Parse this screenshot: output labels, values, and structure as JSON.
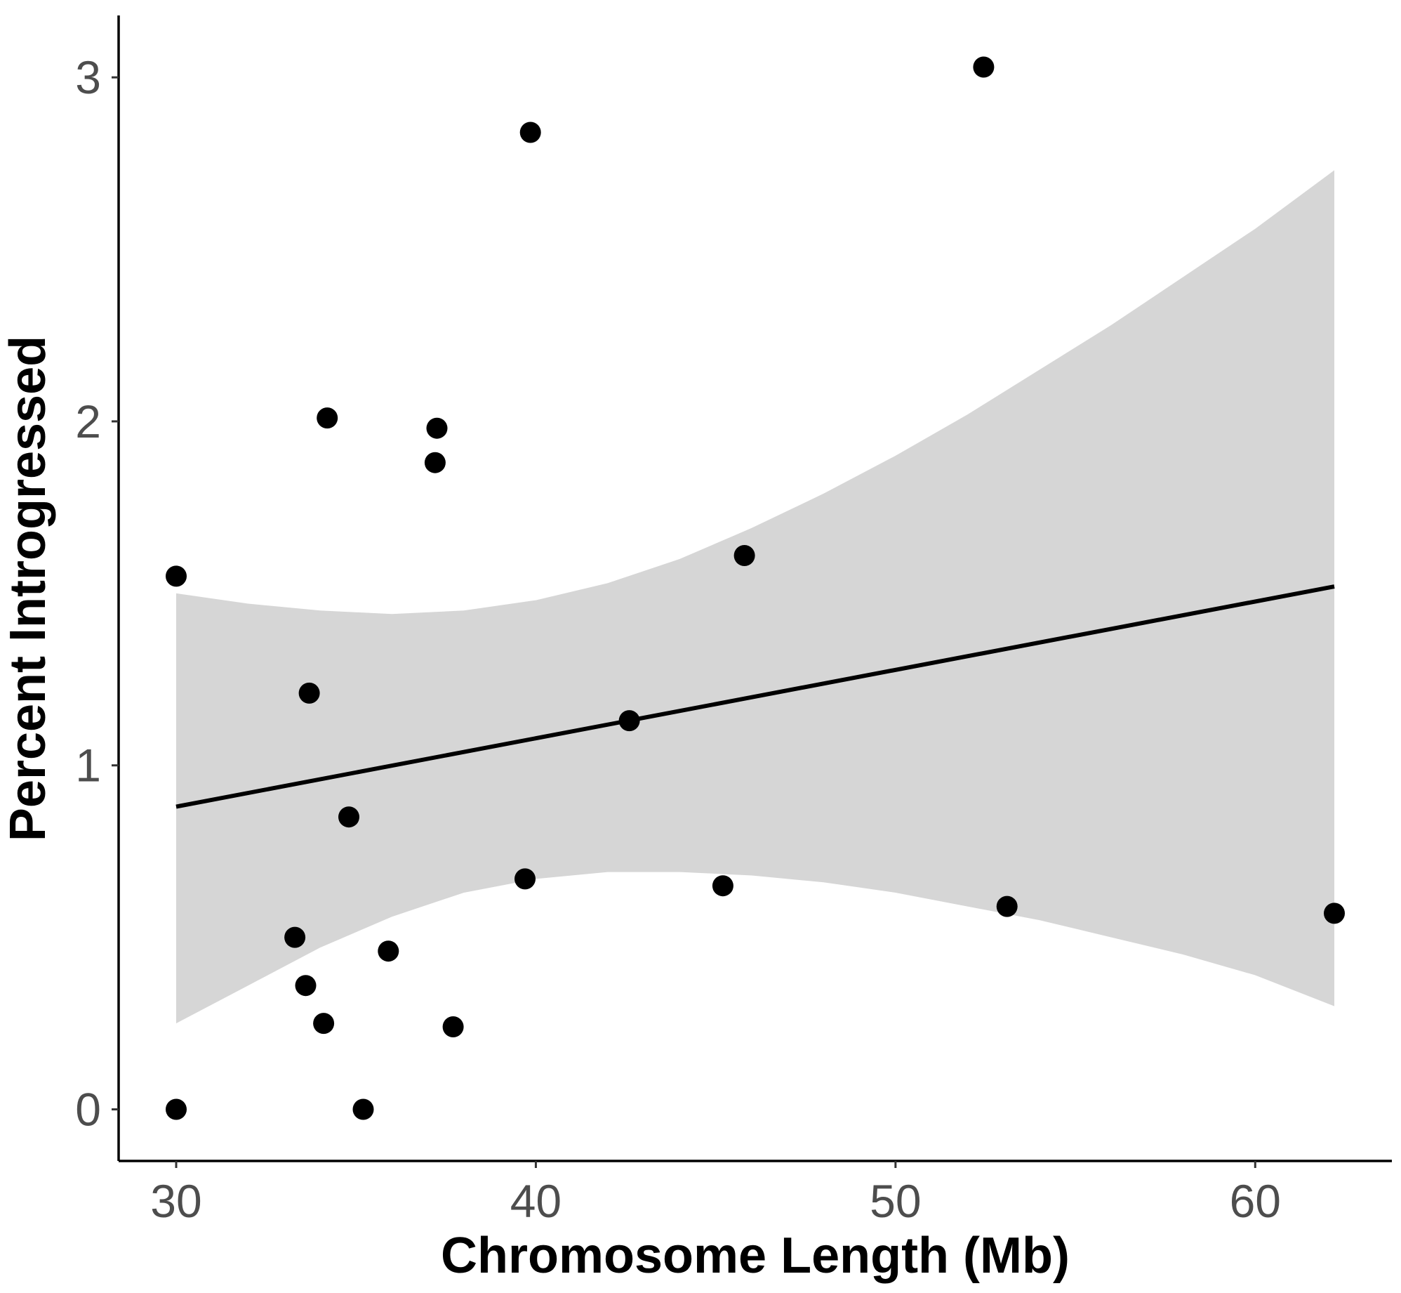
{
  "chart_data": {
    "type": "scatter",
    "xlabel": "Chromosome Length (Mb)",
    "ylabel": "Percent Introgressed",
    "xlim": [
      28.4,
      63.8
    ],
    "ylim": [
      -0.15,
      3.18
    ],
    "x_ticks": [
      30,
      40,
      50,
      60
    ],
    "y_ticks": [
      0,
      1,
      2,
      3
    ],
    "grid": false,
    "legend": "none",
    "points": [
      {
        "x": 30.0,
        "y": 1.55
      },
      {
        "x": 30.0,
        "y": 0.0
      },
      {
        "x": 33.3,
        "y": 0.5
      },
      {
        "x": 33.6,
        "y": 0.36
      },
      {
        "x": 33.7,
        "y": 1.21
      },
      {
        "x": 34.1,
        "y": 0.25
      },
      {
        "x": 34.2,
        "y": 2.01
      },
      {
        "x": 34.8,
        "y": 0.85
      },
      {
        "x": 35.2,
        "y": 0.0
      },
      {
        "x": 35.9,
        "y": 0.46
      },
      {
        "x": 37.2,
        "y": 1.88
      },
      {
        "x": 37.25,
        "y": 1.98
      },
      {
        "x": 37.7,
        "y": 0.24
      },
      {
        "x": 39.7,
        "y": 0.67
      },
      {
        "x": 39.85,
        "y": 2.84
      },
      {
        "x": 42.6,
        "y": 1.13
      },
      {
        "x": 45.2,
        "y": 0.65
      },
      {
        "x": 45.8,
        "y": 1.61
      },
      {
        "x": 52.45,
        "y": 3.03
      },
      {
        "x": 53.1,
        "y": 0.59
      },
      {
        "x": 62.2,
        "y": 0.57
      }
    ],
    "trend_line": {
      "x": [
        30.0,
        62.2
      ],
      "y": [
        0.88,
        1.52
      ]
    },
    "confidence_band": {
      "x": [
        30.0,
        32.0,
        34.0,
        36.0,
        38.0,
        40.0,
        42.0,
        44.0,
        46.0,
        48.0,
        50.0,
        52.0,
        54.0,
        56.0,
        58.0,
        60.0,
        62.2
      ],
      "upper": [
        1.5,
        1.47,
        1.45,
        1.44,
        1.45,
        1.48,
        1.53,
        1.6,
        1.69,
        1.79,
        1.9,
        2.02,
        2.15,
        2.28,
        2.42,
        2.56,
        2.73
      ],
      "lower": [
        0.25,
        0.36,
        0.47,
        0.56,
        0.63,
        0.67,
        0.69,
        0.69,
        0.68,
        0.66,
        0.63,
        0.59,
        0.55,
        0.5,
        0.45,
        0.39,
        0.3
      ]
    },
    "colors": {
      "point": "#000000",
      "line": "#000000",
      "band": "#d6d6d6"
    }
  }
}
